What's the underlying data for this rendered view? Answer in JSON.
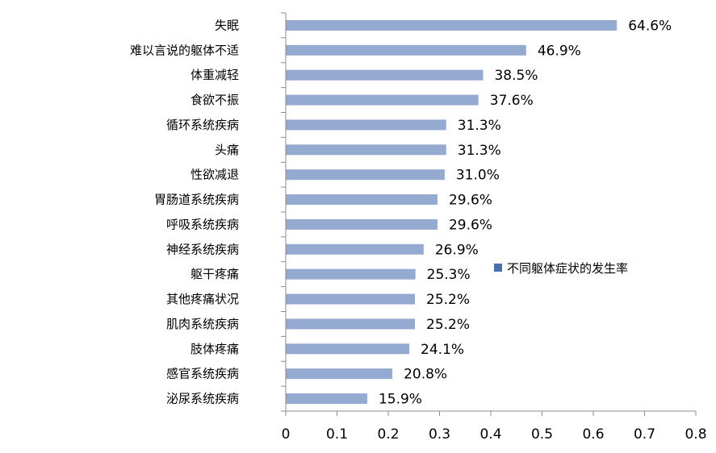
{
  "chart_data": {
    "type": "bar",
    "orientation": "horizontal",
    "categories": [
      "失眠",
      "难以言说的躯体不适",
      "体重减轻",
      "食欲不振",
      "循环系统疾病",
      "头痛",
      "性欲减退",
      "胃肠道系统疾病",
      "呼吸系统疾病",
      "神经系统疾病",
      "躯干疼痛",
      "其他疼痛状况",
      "肌肉系统疾病",
      "肢体疼痛",
      "感官系统疾病",
      "泌尿系统疾病"
    ],
    "series": [
      {
        "name": "不同躯体症状的发生率",
        "values": [
          0.646,
          0.469,
          0.385,
          0.376,
          0.313,
          0.313,
          0.31,
          0.296,
          0.296,
          0.269,
          0.253,
          0.252,
          0.252,
          0.241,
          0.208,
          0.159
        ],
        "labels": [
          "64.6%",
          "46.9%",
          "38.5%",
          "37.6%",
          "31.3%",
          "31.3%",
          "31.0%",
          "29.6%",
          "29.6%",
          "26.9%",
          "25.3%",
          "25.2%",
          "25.2%",
          "24.1%",
          "20.8%",
          "15.9%"
        ],
        "color": "#94AAD0"
      }
    ],
    "x_ticks": [
      "0",
      "0.1",
      "0.2",
      "0.3",
      "0.4",
      "0.5",
      "0.6",
      "0.7",
      "0.8"
    ],
    "xlim": [
      0,
      0.8
    ],
    "grid": false,
    "legend": {
      "position": "right",
      "color": "#4A6FB0"
    },
    "title": "",
    "xlabel": "",
    "ylabel": ""
  }
}
